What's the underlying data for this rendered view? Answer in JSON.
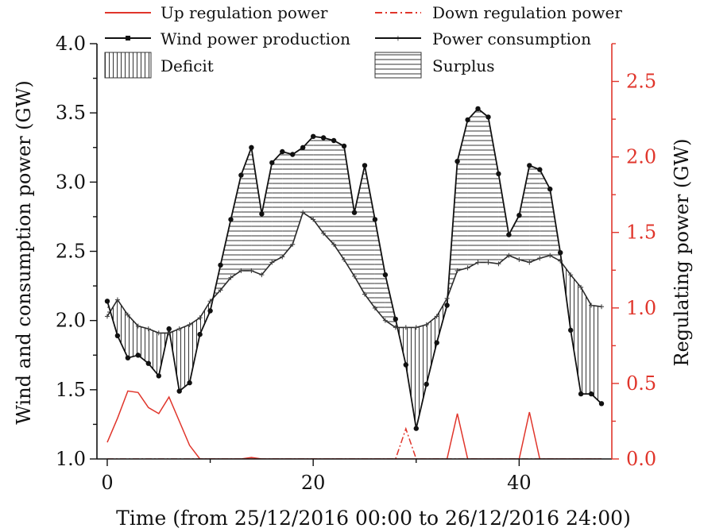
{
  "chart_data": {
    "type": "line",
    "xlabel": "Time (from 25/12/2016 00:00 to 26/12/2016 24:00)",
    "ylabel_left": "Wind and consumption power (GW)",
    "ylabel_right": "Regulating power (GW)",
    "xlim": [
      -1,
      49
    ],
    "xticks": [
      "0",
      "20",
      "40"
    ],
    "ylim_left": [
      1.0,
      4.0
    ],
    "yticks_left": [
      "1.0",
      "1.5",
      "2.0",
      "2.5",
      "3.0",
      "3.5",
      "4.0"
    ],
    "ylim_right": [
      0.0,
      2.75
    ],
    "yticks_right": [
      "0.0",
      "0.5",
      "1.0",
      "1.5",
      "2.0",
      "2.5"
    ],
    "grid": false,
    "legend_position": "top",
    "legend": {
      "up": "Up regulation power",
      "down": "Down regulation power",
      "wind": "Wind power production",
      "consumption": "Power consumption",
      "deficit": "Deficit",
      "surplus": "Surplus"
    },
    "colors": {
      "regulation": "#e0352b",
      "main": "#111111",
      "right_axis": "#e0352b"
    },
    "x": [
      0,
      1,
      2,
      3,
      4,
      5,
      6,
      7,
      8,
      9,
      10,
      11,
      12,
      13,
      14,
      15,
      16,
      17,
      18,
      19,
      20,
      21,
      22,
      23,
      24,
      25,
      26,
      27,
      28,
      29,
      30,
      31,
      32,
      33,
      34,
      35,
      36,
      37,
      38,
      39,
      40,
      41,
      42,
      43,
      44,
      45,
      46,
      47,
      48
    ],
    "series": [
      {
        "name": "Wind power production",
        "axis": "left",
        "values": [
          2.14,
          1.89,
          1.73,
          1.75,
          1.69,
          1.6,
          1.94,
          1.49,
          1.55,
          1.9,
          2.07,
          2.4,
          2.73,
          3.05,
          3.25,
          2.77,
          3.14,
          3.22,
          3.2,
          3.25,
          3.33,
          3.32,
          3.3,
          3.26,
          2.78,
          3.12,
          2.73,
          2.33,
          2.01,
          1.68,
          1.22,
          1.54,
          1.84,
          2.11,
          3.15,
          3.45,
          3.53,
          3.47,
          3.06,
          2.62,
          2.76,
          3.12,
          3.09,
          2.95,
          2.49,
          1.93,
          1.47,
          1.47,
          1.4
        ]
      },
      {
        "name": "Power consumption",
        "axis": "left",
        "values": [
          2.03,
          2.15,
          2.04,
          1.96,
          1.94,
          1.91,
          1.91,
          1.94,
          1.97,
          2.02,
          2.14,
          2.22,
          2.31,
          2.36,
          2.36,
          2.33,
          2.42,
          2.46,
          2.55,
          2.78,
          2.73,
          2.63,
          2.55,
          2.44,
          2.32,
          2.19,
          2.09,
          2.0,
          1.95,
          1.95,
          1.95,
          1.97,
          2.03,
          2.16,
          2.36,
          2.38,
          2.42,
          2.42,
          2.41,
          2.47,
          2.44,
          2.42,
          2.45,
          2.47,
          2.43,
          2.33,
          2.24,
          2.11,
          2.1
        ]
      },
      {
        "name": "Up regulation power",
        "axis": "right",
        "style": "solid",
        "values": [
          0.11,
          0.27,
          0.45,
          0.44,
          0.34,
          0.3,
          0.41,
          0.25,
          0.09,
          0.0,
          0.0,
          0.0,
          0.0,
          0.0,
          0.01,
          0.0,
          0.0,
          0.0,
          0.0,
          0.0,
          0.0,
          0.0,
          0.0,
          0.0,
          0.0,
          0.0,
          0.0,
          0.0,
          0.0,
          0.0,
          0.0,
          0.0,
          0.0,
          0.0,
          0.3,
          0.0,
          0.0,
          0.0,
          0.0,
          0.0,
          0.0,
          0.31,
          0.0,
          0.0,
          0.0,
          0.0,
          0.0,
          0.0,
          0.0
        ]
      },
      {
        "name": "Down regulation power",
        "axis": "right",
        "style": "dashdot",
        "values": [
          0.0,
          0.0,
          0.0,
          0.0,
          0.0,
          0.0,
          0.0,
          0.0,
          0.0,
          0.0,
          0.0,
          0.0,
          0.0,
          0.0,
          0.0,
          0.0,
          0.0,
          0.0,
          0.0,
          0.0,
          0.0,
          0.0,
          0.0,
          0.0,
          0.0,
          0.0,
          0.0,
          0.0,
          0.0,
          0.2,
          0.0,
          0.0,
          0.0,
          0.0,
          0.0,
          0.0,
          0.0,
          0.0,
          0.0,
          0.0,
          0.0,
          0.0,
          0.0,
          0.0,
          0.0,
          0.0,
          0.0,
          0.0,
          0.0
        ]
      }
    ]
  }
}
